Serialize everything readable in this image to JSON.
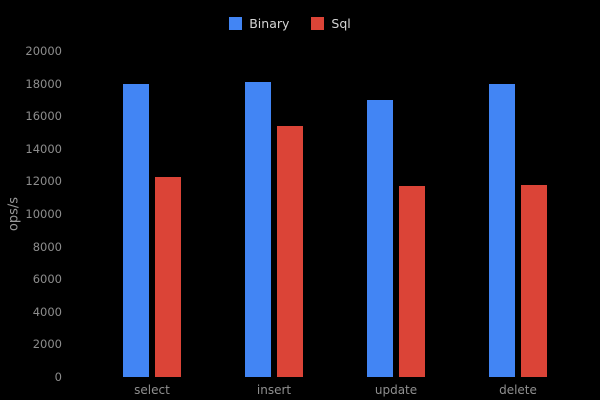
{
  "chart_data": {
    "type": "bar",
    "title": "",
    "xlabel": "",
    "ylabel": "ops/s",
    "categories": [
      "select",
      "insert",
      "update",
      "delete"
    ],
    "series": [
      {
        "name": "Binary",
        "color": "#4285F4",
        "values": [
          18000,
          18100,
          17000,
          18000
        ]
      },
      {
        "name": "Sql",
        "color": "#DB4437",
        "values": [
          12300,
          15400,
          11700,
          11800
        ]
      }
    ],
    "ylim": [
      0,
      20000
    ],
    "yticks": [
      0,
      2000,
      4000,
      6000,
      8000,
      10000,
      12000,
      14000,
      16000,
      18000,
      20000
    ],
    "grid": false,
    "legend_position": "top",
    "background_color": "#000000",
    "tick_label_color": "#8d8d8d",
    "legend_text_color": "#d4d4d4",
    "axis_title_color": "#989898"
  }
}
